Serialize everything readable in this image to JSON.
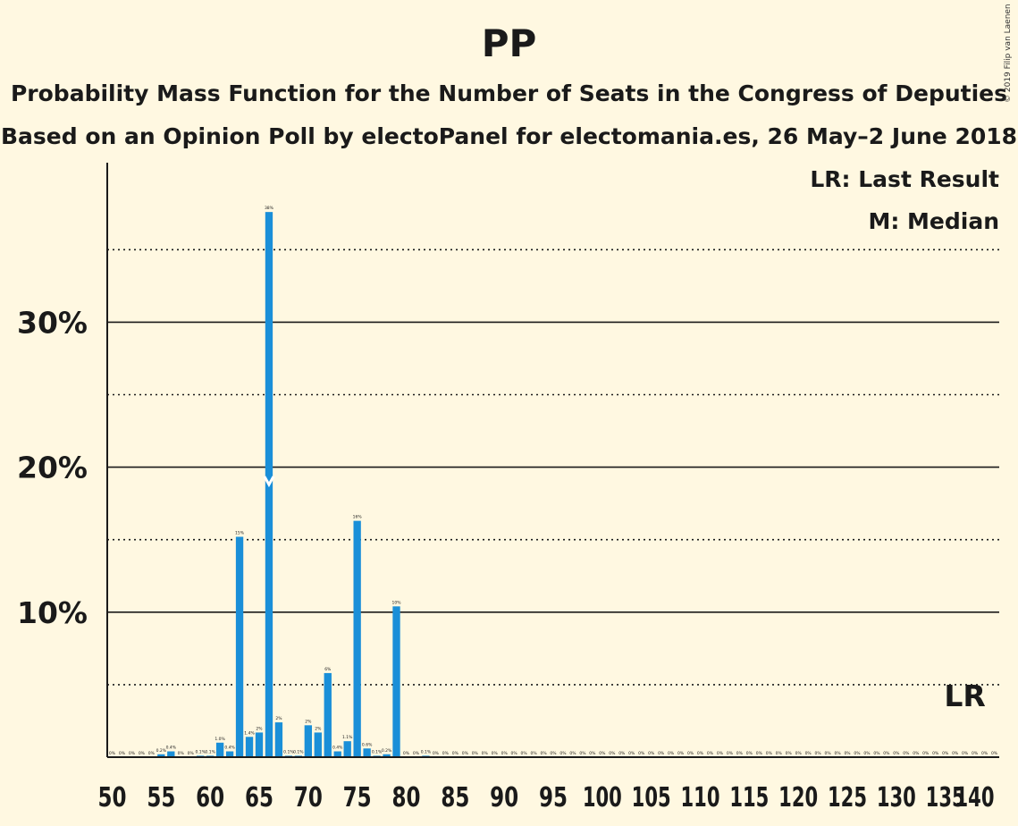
{
  "header": {
    "title": "PP",
    "subtitle_line1": "Probability Mass Function for the Number of Seats in the Congress of Deputies",
    "subtitle_line2": "Based on an Opinion Poll by electoPanel for electomania.es, 26 May–2 June 2018",
    "copyright": "© 2019 Filip van Laenen"
  },
  "legend": {
    "last_result": "LR: Last Result",
    "median": "M: Median"
  },
  "colors": {
    "background": "#FFF8E1",
    "bar": "#1A8FD8",
    "text": "#1a1a1a"
  },
  "chart_data": {
    "type": "bar",
    "x_min": 50,
    "x_max": 140,
    "ylim": [
      0,
      41
    ],
    "y_ticks": [
      10,
      20,
      30
    ],
    "y_tick_labels": [
      "10%",
      "20%",
      "30%"
    ],
    "y_dotted": [
      5,
      15,
      25,
      35
    ],
    "x_ticks": [
      50,
      55,
      60,
      65,
      70,
      75,
      80,
      85,
      90,
      95,
      100,
      105,
      110,
      115,
      120,
      125,
      130,
      135,
      140
    ],
    "median": 66,
    "median_marker": "M",
    "last_result": 137,
    "last_result_label": "LR",
    "points": [
      {
        "seats": 50,
        "value": 0,
        "label": "0%"
      },
      {
        "seats": 51,
        "value": 0,
        "label": "0%"
      },
      {
        "seats": 52,
        "value": 0,
        "label": "0%"
      },
      {
        "seats": 53,
        "value": 0,
        "label": "0%"
      },
      {
        "seats": 54,
        "value": 0,
        "label": "0%"
      },
      {
        "seats": 55,
        "value": 0.2,
        "label": "0.2%"
      },
      {
        "seats": 56,
        "value": 0.4,
        "label": "0.4%"
      },
      {
        "seats": 57,
        "value": 0,
        "label": "0%"
      },
      {
        "seats": 58,
        "value": 0,
        "label": "0%"
      },
      {
        "seats": 59,
        "value": 0.1,
        "label": "0.1%"
      },
      {
        "seats": 60,
        "value": 0.1,
        "label": "0.1%"
      },
      {
        "seats": 61,
        "value": 1.0,
        "label": "1.0%"
      },
      {
        "seats": 62,
        "value": 0.4,
        "label": "0.4%"
      },
      {
        "seats": 63,
        "value": 15.2,
        "label": "15%"
      },
      {
        "seats": 64,
        "value": 1.4,
        "label": "1.4%"
      },
      {
        "seats": 65,
        "value": 1.7,
        "label": "2%"
      },
      {
        "seats": 66,
        "value": 37.6,
        "label": "38%"
      },
      {
        "seats": 67,
        "value": 2.4,
        "label": "2%"
      },
      {
        "seats": 68,
        "value": 0.1,
        "label": "0.1%"
      },
      {
        "seats": 69,
        "value": 0.1,
        "label": "0.1%"
      },
      {
        "seats": 70,
        "value": 2.2,
        "label": "2%"
      },
      {
        "seats": 71,
        "value": 1.7,
        "label": "2%"
      },
      {
        "seats": 72,
        "value": 5.8,
        "label": "6%"
      },
      {
        "seats": 73,
        "value": 0.4,
        "label": "0.4%"
      },
      {
        "seats": 74,
        "value": 1.1,
        "label": "1.1%"
      },
      {
        "seats": 75,
        "value": 16.3,
        "label": "16%"
      },
      {
        "seats": 76,
        "value": 0.6,
        "label": "0.6%"
      },
      {
        "seats": 77,
        "value": 0.1,
        "label": "0.1%"
      },
      {
        "seats": 78,
        "value": 0.2,
        "label": "0.2%"
      },
      {
        "seats": 79,
        "value": 10.4,
        "label": "10%"
      },
      {
        "seats": 80,
        "value": 0,
        "label": "0%"
      },
      {
        "seats": 81,
        "value": 0,
        "label": "0%"
      },
      {
        "seats": 82,
        "value": 0.1,
        "label": "0.1%"
      },
      {
        "seats": 83,
        "value": 0,
        "label": "0%"
      },
      {
        "seats": 84,
        "value": 0,
        "label": "0%"
      },
      {
        "seats": 85,
        "value": 0,
        "label": "0%"
      },
      {
        "seats": 86,
        "value": 0,
        "label": "0%"
      },
      {
        "seats": 87,
        "value": 0,
        "label": "0%"
      },
      {
        "seats": 88,
        "value": 0,
        "label": "0%"
      },
      {
        "seats": 89,
        "value": 0,
        "label": "0%"
      },
      {
        "seats": 90,
        "value": 0,
        "label": "0%"
      },
      {
        "seats": 91,
        "value": 0,
        "label": "0%"
      },
      {
        "seats": 92,
        "value": 0,
        "label": "0%"
      },
      {
        "seats": 93,
        "value": 0,
        "label": "0%"
      },
      {
        "seats": 94,
        "value": 0,
        "label": "0%"
      },
      {
        "seats": 95,
        "value": 0,
        "label": "0%"
      },
      {
        "seats": 96,
        "value": 0,
        "label": "0%"
      },
      {
        "seats": 97,
        "value": 0,
        "label": "0%"
      },
      {
        "seats": 98,
        "value": 0,
        "label": "0%"
      },
      {
        "seats": 99,
        "value": 0,
        "label": "0%"
      },
      {
        "seats": 100,
        "value": 0,
        "label": "0%"
      },
      {
        "seats": 101,
        "value": 0,
        "label": "0%"
      },
      {
        "seats": 102,
        "value": 0,
        "label": "0%"
      },
      {
        "seats": 103,
        "value": 0,
        "label": "0%"
      },
      {
        "seats": 104,
        "value": 0,
        "label": "0%"
      },
      {
        "seats": 105,
        "value": 0,
        "label": "0%"
      },
      {
        "seats": 106,
        "value": 0,
        "label": "0%"
      },
      {
        "seats": 107,
        "value": 0,
        "label": "0%"
      },
      {
        "seats": 108,
        "value": 0,
        "label": "0%"
      },
      {
        "seats": 109,
        "value": 0,
        "label": "0%"
      },
      {
        "seats": 110,
        "value": 0,
        "label": "0%"
      },
      {
        "seats": 111,
        "value": 0,
        "label": "0%"
      },
      {
        "seats": 112,
        "value": 0,
        "label": "0%"
      },
      {
        "seats": 113,
        "value": 0,
        "label": "0%"
      },
      {
        "seats": 114,
        "value": 0,
        "label": "0%"
      },
      {
        "seats": 115,
        "value": 0,
        "label": "0%"
      },
      {
        "seats": 116,
        "value": 0,
        "label": "0%"
      },
      {
        "seats": 117,
        "value": 0,
        "label": "0%"
      },
      {
        "seats": 118,
        "value": 0,
        "label": "0%"
      },
      {
        "seats": 119,
        "value": 0,
        "label": "0%"
      },
      {
        "seats": 120,
        "value": 0,
        "label": "0%"
      },
      {
        "seats": 121,
        "value": 0,
        "label": "0%"
      },
      {
        "seats": 122,
        "value": 0,
        "label": "0%"
      },
      {
        "seats": 123,
        "value": 0,
        "label": "0%"
      },
      {
        "seats": 124,
        "value": 0,
        "label": "0%"
      },
      {
        "seats": 125,
        "value": 0,
        "label": "0%"
      },
      {
        "seats": 126,
        "value": 0,
        "label": "0%"
      },
      {
        "seats": 127,
        "value": 0,
        "label": "0%"
      },
      {
        "seats": 128,
        "value": 0,
        "label": "0%"
      },
      {
        "seats": 129,
        "value": 0,
        "label": "0%"
      },
      {
        "seats": 130,
        "value": 0,
        "label": "0%"
      },
      {
        "seats": 131,
        "value": 0,
        "label": "0%"
      },
      {
        "seats": 132,
        "value": 0,
        "label": "0%"
      },
      {
        "seats": 133,
        "value": 0,
        "label": "0%"
      },
      {
        "seats": 134,
        "value": 0,
        "label": "0%"
      },
      {
        "seats": 135,
        "value": 0,
        "label": "0%"
      },
      {
        "seats": 136,
        "value": 0,
        "label": "0%"
      },
      {
        "seats": 137,
        "value": 0,
        "label": "0%"
      },
      {
        "seats": 138,
        "value": 0,
        "label": "0%"
      },
      {
        "seats": 139,
        "value": 0,
        "label": "0%"
      },
      {
        "seats": 140,
        "value": 0,
        "label": "0%"
      }
    ]
  }
}
